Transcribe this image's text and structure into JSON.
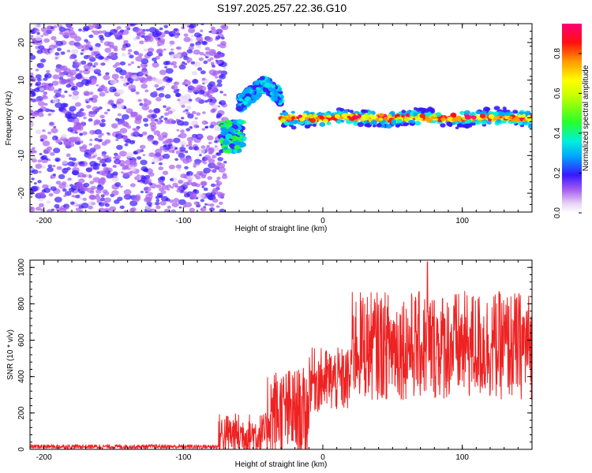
{
  "figure": {
    "title": "S197.2025.257.22.36.G10"
  },
  "chart_data": [
    {
      "type": "heatmap",
      "name": "spectrogram",
      "xlabel": "Height of straight line (km)",
      "ylabel": "Frequency (Hz)",
      "xlim": [
        -210,
        150
      ],
      "ylim": [
        -25,
        25
      ],
      "xticks": [
        -200,
        -100,
        0,
        100
      ],
      "yticks": [
        -20,
        -10,
        0,
        10,
        20
      ],
      "colorbar": {
        "label": "Normalized spectral amplitude",
        "range": [
          0,
          0.95
        ],
        "ticks": [
          0.0,
          0.2,
          0.4,
          0.6,
          0.8
        ]
      },
      "regions": [
        {
          "description": "diffuse noise",
          "x_range": [
            -210,
            -70
          ],
          "y_range": [
            -25,
            25
          ],
          "amplitude": 0.1
        },
        {
          "description": "emerging signal cluster",
          "x_range": [
            -73,
            -57
          ],
          "y_range": [
            -9,
            -1
          ],
          "amplitude": 0.35
        },
        {
          "description": "signal arc",
          "x_range": [
            -60,
            -30
          ],
          "y_range": [
            2,
            12
          ],
          "amplitude": 0.25
        },
        {
          "description": "stable signal band",
          "x_range": [
            -30,
            150
          ],
          "y_range": [
            -2,
            2
          ],
          "amplitude": 0.9
        }
      ]
    },
    {
      "type": "line",
      "name": "snr",
      "xlabel": "Height of straight line (km)",
      "ylabel": "SNR (10 * v/v)",
      "xlim": [
        -210,
        150
      ],
      "ylim": [
        0,
        1040
      ],
      "xticks": [
        -200,
        -100,
        0,
        100
      ],
      "yticks": [
        0,
        200,
        400,
        600,
        800,
        1000
      ],
      "color": "#ee2222",
      "segments": [
        {
          "x_range": [
            -210,
            -75
          ],
          "mean": 15,
          "spread": 12
        },
        {
          "x_range": [
            -75,
            -40
          ],
          "mean": 80,
          "spread": 120
        },
        {
          "x_range": [
            -40,
            -10
          ],
          "mean": 200,
          "spread": 250
        },
        {
          "x_range": [
            -10,
            20
          ],
          "mean": 380,
          "spread": 180
        },
        {
          "x_range": [
            20,
            150
          ],
          "mean": 570,
          "spread": 300
        }
      ],
      "peak": {
        "x": 75,
        "y": 1030
      }
    }
  ]
}
